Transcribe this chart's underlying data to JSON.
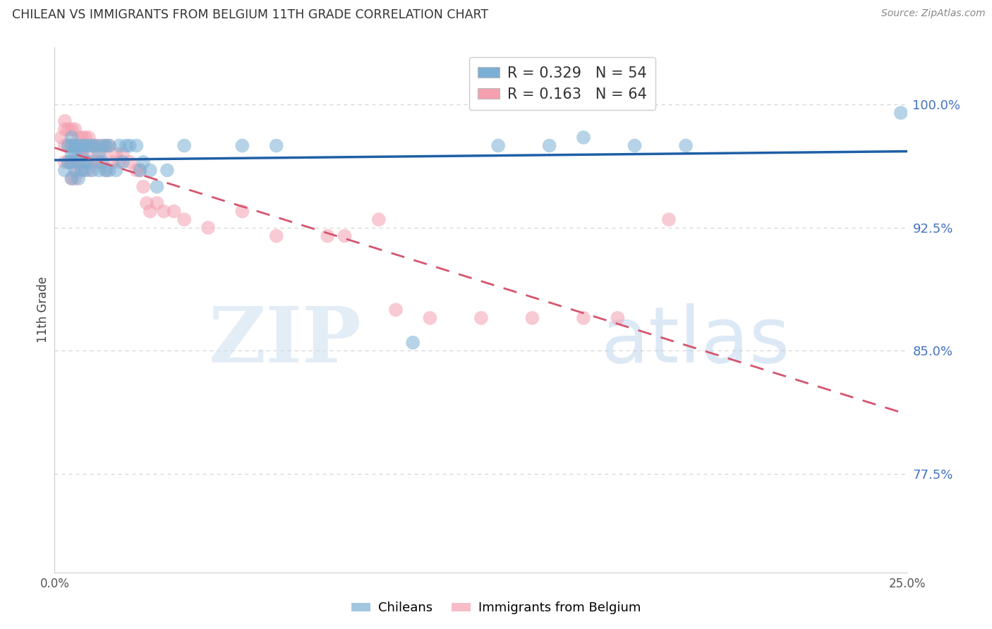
{
  "title": "CHILEAN VS IMMIGRANTS FROM BELGIUM 11TH GRADE CORRELATION CHART",
  "source": "Source: ZipAtlas.com",
  "ylabel": "11th Grade",
  "ytick_labels": [
    "77.5%",
    "85.0%",
    "92.5%",
    "100.0%"
  ],
  "ytick_values": [
    0.775,
    0.85,
    0.925,
    1.0
  ],
  "xlim": [
    0.0,
    0.25
  ],
  "ylim": [
    0.715,
    1.035
  ],
  "r_blue": 0.329,
  "n_blue": 54,
  "r_pink": 0.163,
  "n_pink": 64,
  "blue_color": "#7bafd4",
  "pink_color": "#f4a0b0",
  "blue_line_color": "#1f5fa6",
  "pink_line_color": "#d6546e",
  "blue_scatter_x": [
    0.003,
    0.004,
    0.004,
    0.005,
    0.005,
    0.005,
    0.005,
    0.005,
    0.006,
    0.006,
    0.006,
    0.007,
    0.007,
    0.007,
    0.008,
    0.008,
    0.008,
    0.009,
    0.009,
    0.009,
    0.01,
    0.01,
    0.011,
    0.011,
    0.012,
    0.013,
    0.013,
    0.014,
    0.014,
    0.015,
    0.015,
    0.016,
    0.016,
    0.018,
    0.019,
    0.02,
    0.021,
    0.022,
    0.024,
    0.025,
    0.026,
    0.028,
    0.03,
    0.033,
    0.038,
    0.055,
    0.065,
    0.105,
    0.13,
    0.145,
    0.155,
    0.17,
    0.185,
    0.248
  ],
  "blue_scatter_y": [
    0.96,
    0.975,
    0.965,
    0.98,
    0.975,
    0.97,
    0.965,
    0.955,
    0.975,
    0.97,
    0.96,
    0.975,
    0.965,
    0.955,
    0.975,
    0.97,
    0.96,
    0.975,
    0.965,
    0.96,
    0.975,
    0.965,
    0.975,
    0.96,
    0.975,
    0.97,
    0.96,
    0.975,
    0.965,
    0.975,
    0.96,
    0.975,
    0.96,
    0.96,
    0.975,
    0.965,
    0.975,
    0.975,
    0.975,
    0.96,
    0.965,
    0.96,
    0.95,
    0.96,
    0.975,
    0.975,
    0.975,
    0.855,
    0.975,
    0.975,
    0.98,
    0.975,
    0.975,
    0.995
  ],
  "pink_scatter_x": [
    0.002,
    0.003,
    0.003,
    0.003,
    0.003,
    0.004,
    0.004,
    0.004,
    0.005,
    0.005,
    0.005,
    0.005,
    0.006,
    0.006,
    0.006,
    0.006,
    0.007,
    0.007,
    0.007,
    0.008,
    0.008,
    0.008,
    0.009,
    0.009,
    0.01,
    0.01,
    0.01,
    0.011,
    0.011,
    0.012,
    0.012,
    0.013,
    0.013,
    0.014,
    0.015,
    0.015,
    0.016,
    0.017,
    0.018,
    0.019,
    0.02,
    0.022,
    0.024,
    0.025,
    0.026,
    0.027,
    0.028,
    0.03,
    0.032,
    0.035,
    0.038,
    0.045,
    0.055,
    0.065,
    0.08,
    0.085,
    0.095,
    0.1,
    0.11,
    0.125,
    0.14,
    0.155,
    0.165,
    0.18
  ],
  "pink_scatter_y": [
    0.98,
    0.99,
    0.985,
    0.975,
    0.965,
    0.985,
    0.975,
    0.965,
    0.985,
    0.975,
    0.965,
    0.955,
    0.985,
    0.975,
    0.965,
    0.955,
    0.98,
    0.97,
    0.96,
    0.98,
    0.97,
    0.96,
    0.98,
    0.965,
    0.98,
    0.97,
    0.96,
    0.975,
    0.965,
    0.975,
    0.965,
    0.975,
    0.965,
    0.97,
    0.975,
    0.96,
    0.975,
    0.965,
    0.97,
    0.965,
    0.97,
    0.965,
    0.96,
    0.96,
    0.95,
    0.94,
    0.935,
    0.94,
    0.935,
    0.935,
    0.93,
    0.925,
    0.935,
    0.92,
    0.92,
    0.92,
    0.93,
    0.875,
    0.87,
    0.87,
    0.87,
    0.87,
    0.87,
    0.93
  ],
  "background_color": "#ffffff",
  "grid_color": "#d5d5d5"
}
